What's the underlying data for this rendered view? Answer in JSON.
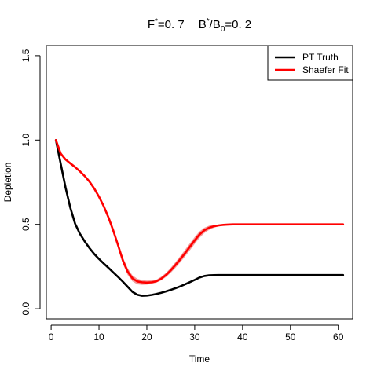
{
  "chart_data": {
    "type": "line",
    "title": {
      "f_base": "F",
      "f_sup": "*",
      "f_value": "=0. 7",
      "b_base": "B",
      "b_sup": "*",
      "b_mid": "/B",
      "b_sub": "0",
      "b_value": "=0. 2"
    },
    "xlabel": "Time",
    "ylabel": "Depletion",
    "xlim": [
      -1,
      63
    ],
    "ylim": [
      -0.06,
      1.56
    ],
    "xticks": [
      0,
      10,
      20,
      30,
      40,
      50,
      60
    ],
    "yticks": [
      0.0,
      0.5,
      1.0,
      1.5
    ],
    "ytick_labels": [
      "0.0",
      "0.5",
      "1.0",
      "1.5"
    ],
    "legend_position": "top-right",
    "series": [
      {
        "name": "PT Truth",
        "color": "#000000",
        "x": [
          1,
          2,
          3,
          4,
          5,
          6,
          7,
          8,
          9,
          10,
          11,
          12,
          13,
          14,
          15,
          16,
          17,
          18,
          19,
          20,
          21,
          22,
          23,
          24,
          25,
          26,
          27,
          28,
          29,
          30,
          31,
          32,
          33,
          34,
          35,
          36,
          37,
          38,
          39,
          40,
          41,
          42,
          43,
          44,
          45,
          46,
          47,
          48,
          49,
          50,
          51,
          52,
          53,
          54,
          55,
          56,
          57,
          58,
          59,
          60,
          61
        ],
        "values": [
          1.0,
          0.86,
          0.72,
          0.6,
          0.505,
          0.445,
          0.4,
          0.36,
          0.325,
          0.295,
          0.268,
          0.242,
          0.215,
          0.188,
          0.16,
          0.13,
          0.1,
          0.083,
          0.077,
          0.078,
          0.082,
          0.088,
          0.095,
          0.103,
          0.112,
          0.122,
          0.133,
          0.145,
          0.158,
          0.171,
          0.185,
          0.194,
          0.198,
          0.199,
          0.2,
          0.2,
          0.2,
          0.2,
          0.2,
          0.2,
          0.2,
          0.2,
          0.2,
          0.2,
          0.2,
          0.2,
          0.2,
          0.2,
          0.2,
          0.2,
          0.2,
          0.2,
          0.2,
          0.2,
          0.2,
          0.2,
          0.2,
          0.2,
          0.2,
          0.2,
          0.2
        ]
      },
      {
        "name": "Shaefer Fit",
        "color": "#ff0000",
        "band_color": "#f08a8a",
        "x": [
          1,
          2,
          3,
          4,
          5,
          6,
          7,
          8,
          9,
          10,
          11,
          12,
          13,
          14,
          15,
          16,
          17,
          18,
          19,
          20,
          21,
          22,
          23,
          24,
          25,
          26,
          27,
          28,
          29,
          30,
          31,
          32,
          33,
          34,
          35,
          36,
          37,
          38,
          39,
          40,
          41,
          42,
          43,
          44,
          45,
          46,
          47,
          48,
          49,
          50,
          51,
          52,
          53,
          54,
          55,
          56,
          57,
          58,
          59,
          60,
          61
        ],
        "values": [
          1.0,
          0.92,
          0.885,
          0.862,
          0.84,
          0.815,
          0.787,
          0.754,
          0.713,
          0.664,
          0.607,
          0.54,
          0.462,
          0.375,
          0.285,
          0.22,
          0.18,
          0.162,
          0.157,
          0.155,
          0.157,
          0.163,
          0.178,
          0.2,
          0.228,
          0.26,
          0.294,
          0.33,
          0.368,
          0.405,
          0.44,
          0.465,
          0.48,
          0.489,
          0.494,
          0.497,
          0.499,
          0.5,
          0.5,
          0.5,
          0.5,
          0.5,
          0.5,
          0.5,
          0.5,
          0.5,
          0.5,
          0.5,
          0.5,
          0.5,
          0.5,
          0.5,
          0.5,
          0.5,
          0.5,
          0.5,
          0.5,
          0.5,
          0.5,
          0.5,
          0.5
        ],
        "band_lower": [
          1.0,
          0.92,
          0.885,
          0.862,
          0.84,
          0.815,
          0.787,
          0.754,
          0.713,
          0.662,
          0.603,
          0.534,
          0.452,
          0.36,
          0.265,
          0.2,
          0.162,
          0.145,
          0.142,
          0.143,
          0.147,
          0.155,
          0.168,
          0.188,
          0.213,
          0.243,
          0.276,
          0.31,
          0.347,
          0.384,
          0.42,
          0.448,
          0.467,
          0.48,
          0.488,
          0.493,
          0.497,
          0.499,
          0.5,
          0.5,
          0.5,
          0.5,
          0.5,
          0.5,
          0.5,
          0.5,
          0.5,
          0.5,
          0.5,
          0.5,
          0.5,
          0.5,
          0.5,
          0.5,
          0.5,
          0.5,
          0.5,
          0.5,
          0.5,
          0.5,
          0.5
        ],
        "band_upper": [
          1.0,
          0.92,
          0.885,
          0.862,
          0.84,
          0.815,
          0.787,
          0.754,
          0.713,
          0.666,
          0.611,
          0.546,
          0.472,
          0.39,
          0.305,
          0.24,
          0.198,
          0.178,
          0.17,
          0.167,
          0.168,
          0.173,
          0.19,
          0.213,
          0.243,
          0.277,
          0.313,
          0.35,
          0.388,
          0.425,
          0.458,
          0.48,
          0.492,
          0.497,
          0.499,
          0.5,
          0.5,
          0.5,
          0.5,
          0.5,
          0.5,
          0.5,
          0.5,
          0.5,
          0.5,
          0.5,
          0.5,
          0.5,
          0.5,
          0.5,
          0.5,
          0.5,
          0.5,
          0.5,
          0.5,
          0.5,
          0.5,
          0.5,
          0.5,
          0.5,
          0.5
        ]
      }
    ]
  }
}
